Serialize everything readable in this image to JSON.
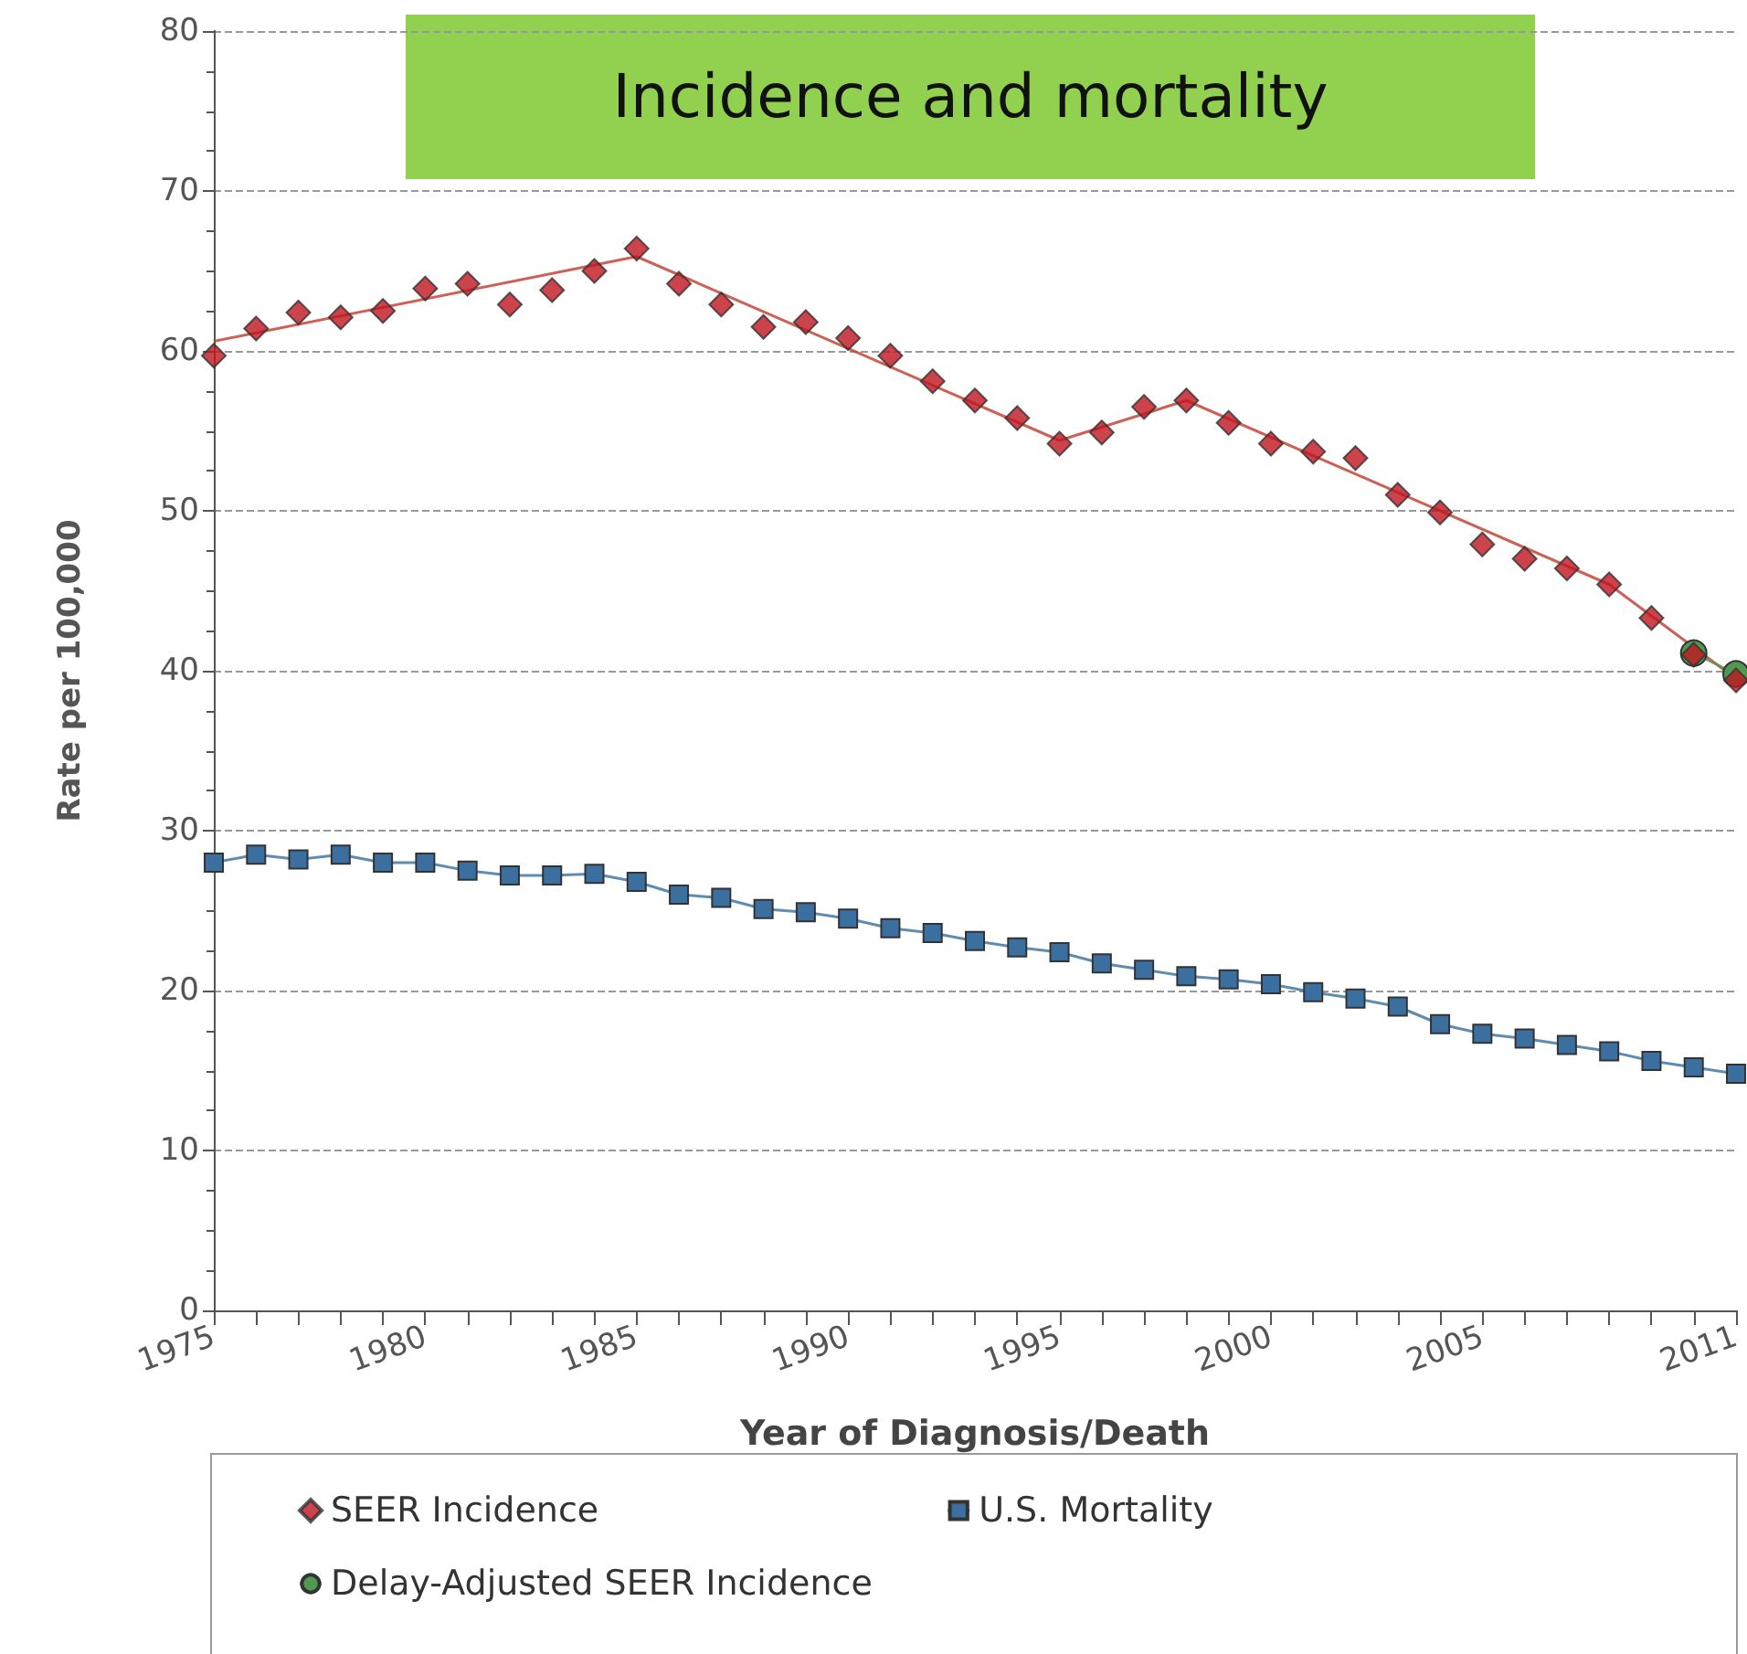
{
  "chart_data": {
    "type": "line",
    "title": "Incidence and mortality",
    "xlabel": "Year of Diagnosis/Death",
    "ylabel": "Rate per 100,000",
    "x": [
      1975,
      1976,
      1977,
      1978,
      1979,
      1980,
      1981,
      1982,
      1983,
      1984,
      1985,
      1986,
      1987,
      1988,
      1989,
      1990,
      1991,
      1992,
      1993,
      1994,
      1995,
      1996,
      1997,
      1998,
      1999,
      2000,
      2001,
      2002,
      2003,
      2004,
      2005,
      2006,
      2007,
      2008,
      2009,
      2010,
      2011
    ],
    "series": [
      {
        "name": "SEER Incidence",
        "type": "scatter",
        "marker": "diamond",
        "color": "#c0141e",
        "values": [
          59.7,
          61.4,
          62.4,
          62.1,
          62.5,
          63.9,
          64.2,
          62.9,
          63.8,
          65.0,
          66.4,
          64.2,
          62.9,
          61.5,
          61.8,
          60.8,
          59.7,
          58.1,
          56.9,
          55.8,
          54.2,
          54.9,
          56.5,
          56.9,
          55.5,
          54.2,
          53.7,
          53.3,
          51.0,
          49.9,
          47.9,
          47.0,
          46.4,
          45.4,
          43.3,
          41.0,
          39.4
        ]
      },
      {
        "marker": "none",
        "color": "#c0392b",
        "x": [
          1975,
          1985,
          1995,
          1998,
          2008,
          2011
        ],
        "values": [
          60.6,
          65.9,
          54.4,
          56.9,
          45.4,
          39.5
        ]
      },
      {
        "name": "U.S. Mortality",
        "marker": "square",
        "color": "#3a6f9f",
        "values": [
          28.0,
          28.5,
          28.2,
          28.5,
          28.0,
          28.0,
          27.5,
          27.2,
          27.2,
          27.3,
          26.8,
          26.0,
          25.8,
          25.1,
          24.9,
          24.5,
          23.9,
          23.6,
          23.1,
          22.7,
          22.4,
          21.7,
          21.3,
          20.9,
          20.7,
          20.4,
          19.9,
          19.5,
          19.0,
          17.9,
          17.3,
          17.0,
          16.6,
          16.2,
          15.6,
          15.2,
          14.8
        ]
      },
      {
        "name": "Delay-Adjusted SEER Incidence",
        "marker": "circle",
        "color": "#4f9a50",
        "values": [
          null,
          null,
          null,
          null,
          null,
          null,
          null,
          null,
          null,
          null,
          null,
          null,
          null,
          null,
          null,
          null,
          null,
          null,
          null,
          null,
          null,
          null,
          null,
          null,
          null,
          null,
          null,
          null,
          null,
          null,
          null,
          null,
          null,
          null,
          null,
          41.1,
          39.8
        ]
      }
    ],
    "xlim": [
      1975,
      2011
    ],
    "xticks": [
      1975,
      {
        "value": 1976,
        "label": null
      },
      {
        "value": 1977,
        "label": null
      },
      {
        "value": 1978,
        "label": null
      },
      {
        "value": 1979,
        "label": null
      },
      1980,
      {
        "value": 1981,
        "label": null
      },
      {
        "value": 1982,
        "label": null
      },
      {
        "value": 1983,
        "label": null
      },
      {
        "value": 1984,
        "label": null
      },
      1985,
      {
        "value": 1986,
        "label": null
      },
      {
        "value": 1987,
        "label": null
      },
      {
        "value": 1988,
        "label": null
      },
      {
        "value": 1989,
        "label": null
      },
      1990,
      {
        "value": 1991,
        "label": null
      },
      {
        "value": 1992,
        "label": null
      },
      {
        "value": 1993,
        "label": null
      },
      {
        "value": 1994,
        "label": null
      },
      1995,
      {
        "value": 1996,
        "label": null
      },
      {
        "value": 1997,
        "label": null
      },
      {
        "value": 1998,
        "label": null
      },
      {
        "value": 1999,
        "label": null
      },
      2000,
      {
        "value": 2001,
        "label": null
      },
      {
        "value": 2002,
        "label": null
      },
      {
        "value": 2003,
        "label": null
      },
      {
        "value": 2004,
        "label": null
      },
      2005,
      {
        "value": 2006,
        "label": null
      },
      {
        "value": 2007,
        "label": null
      },
      {
        "value": 2008,
        "label": null
      },
      {
        "value": 2009,
        "label": null
      },
      {
        "value": 2010,
        "label": null
      },
      2011
    ],
    "ylim": [
      0,
      80
    ],
    "yticks": [
      0,
      {
        "value": 2.5,
        "label": null
      },
      {
        "value": 5,
        "label": null
      },
      {
        "value": 7.5,
        "label": null
      },
      10,
      {
        "value": 12.5,
        "label": null
      },
      {
        "value": 15,
        "label": null
      },
      {
        "value": 17.5,
        "label": null
      },
      20,
      {
        "value": 22.5,
        "label": null
      },
      {
        "value": 25,
        "label": null
      },
      {
        "value": 27.5,
        "label": null
      },
      30,
      {
        "value": 32.5,
        "label": null
      },
      {
        "value": 35,
        "label": null
      },
      {
        "value": 37.5,
        "label": null
      },
      40,
      {
        "value": 42.5,
        "label": null
      },
      {
        "value": 45,
        "label": null
      },
      {
        "value": 47.5,
        "label": null
      },
      50,
      {
        "value": 52.5,
        "label": null
      },
      {
        "value": 55,
        "label": null
      },
      {
        "value": 57.5,
        "label": null
      },
      60,
      {
        "value": 62.5,
        "label": null
      },
      {
        "value": 65,
        "label": null
      },
      {
        "value": 67.5,
        "label": null
      },
      70,
      {
        "value": 72.5,
        "label": null
      },
      {
        "value": 75,
        "label": null
      },
      {
        "value": 77.5,
        "label": null
      },
      80
    ],
    "grid": "y",
    "legend": "bottom"
  }
}
